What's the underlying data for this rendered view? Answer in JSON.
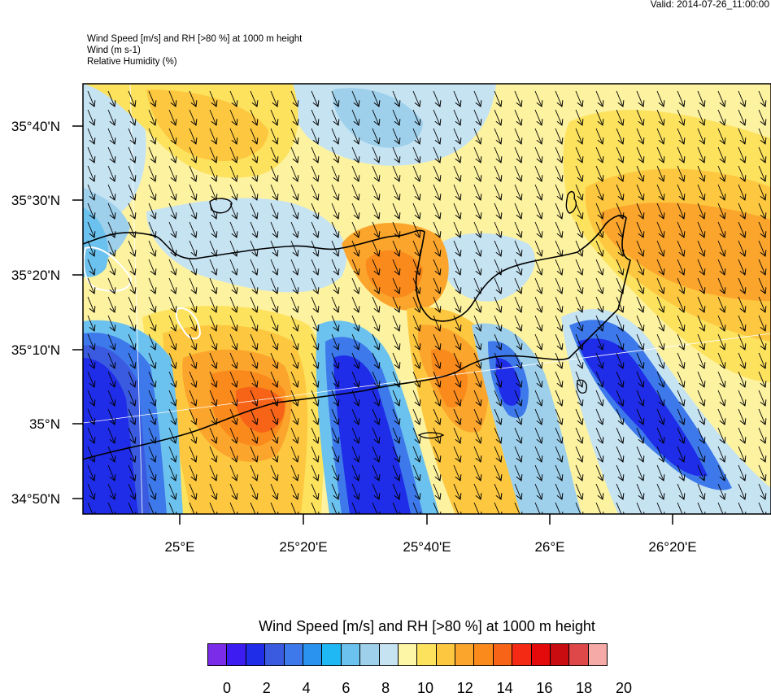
{
  "valid": "Valid: 2014-07-26_11:00:00",
  "titles": {
    "line1": "Wind Speed [m/s] and RH [>80 %] at 1000 m height",
    "line2": "Wind   (m s-1)",
    "line3": "Relative Humidity   (%)"
  },
  "map": {
    "lat_labels": [
      "35°40'N",
      "35°30'N",
      "35°20'N",
      "35°10'N",
      "35°N",
      "34°50'N"
    ],
    "lon_labels": [
      "25°E",
      "25°20'E",
      "25°40'E",
      "26°E",
      "26°20'E"
    ],
    "wind_direction": "north-northwest to south-southeast",
    "colors": {
      "land_outline": "#000000",
      "rh_contour": "#ffffff",
      "grid_line": "#ffffff"
    }
  },
  "legend": {
    "title": "Wind Speed [m/s] and RH [>80 %] at 1000 m height",
    "colors": [
      "#7b2ce8",
      "#3c1cf0",
      "#1f2ce8",
      "#3a5ae0",
      "#3d79ea",
      "#2a93f0",
      "#1fb8f4",
      "#6cc2ee",
      "#9ed0ec",
      "#c6e3f2",
      "#fdf6a6",
      "#fde25e",
      "#fdc840",
      "#fba52c",
      "#fa8a1c",
      "#f76418",
      "#f42a14",
      "#e40a0c",
      "#c80c10",
      "#de4848",
      "#f6aaa8"
    ],
    "ticks": [
      "0",
      "2",
      "4",
      "6",
      "8",
      "10",
      "12",
      "14",
      "16",
      "18",
      "20"
    ]
  }
}
